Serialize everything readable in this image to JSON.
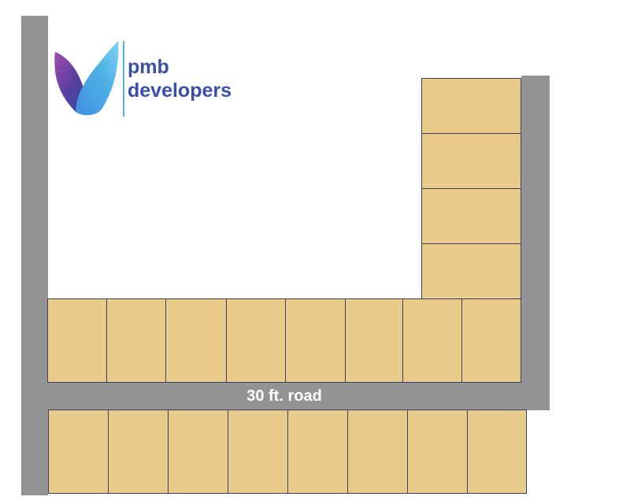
{
  "logo": {
    "line1": "pmb",
    "line2": "developers"
  },
  "road": {
    "label": "30 ft. road"
  },
  "colors": {
    "road": "#949494",
    "plot": "#e8cb8b",
    "plot_border": "#3c3f66",
    "logo_text": "#3a4fa8",
    "logo_accent": "#4fb3e6"
  }
}
